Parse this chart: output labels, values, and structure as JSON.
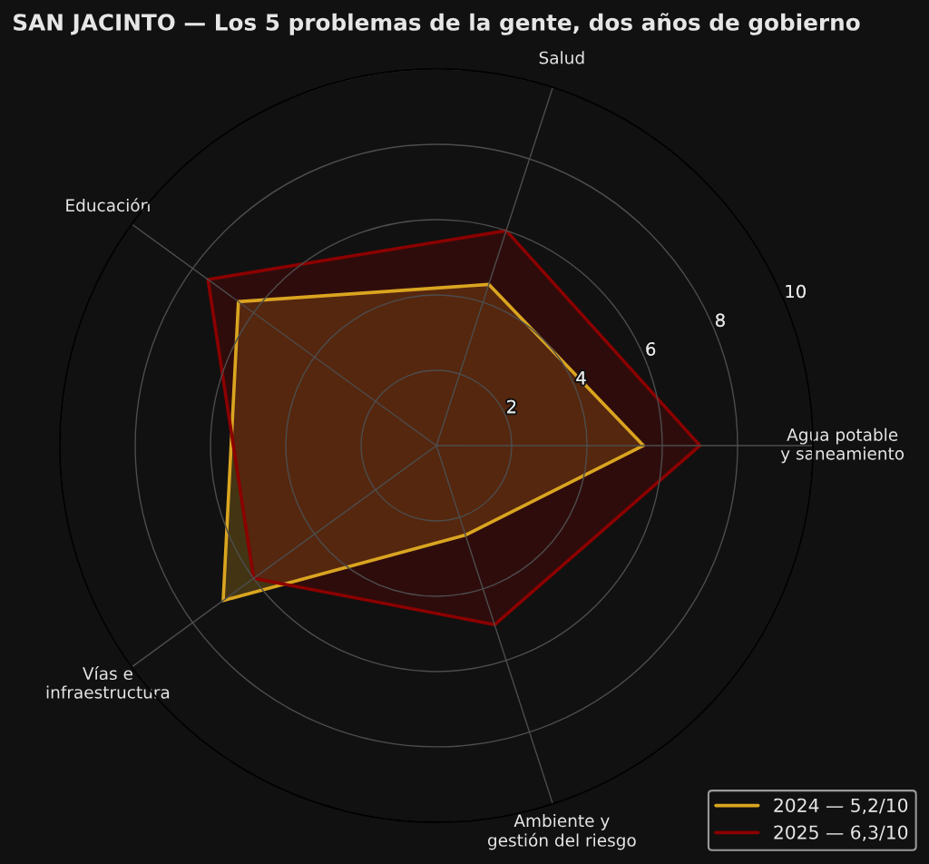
{
  "chart_data": {
    "type": "radar",
    "title": "SAN JACINTO — Los 5 problemas de la gente, dos años de gobierno",
    "categories": [
      "Salud",
      "Agua potable\ny saneamiento",
      "Ambiente y\ngestión del riesgo",
      "Vías e\ninfraestructura",
      "Educación"
    ],
    "series": [
      {
        "name": "2024 — 5,2/10",
        "color": "#daa520",
        "values": [
          4.5,
          5.5,
          2.5,
          7.0,
          6.5
        ]
      },
      {
        "name": "2025 — 6,3/10",
        "color": "#8b0000",
        "values": [
          6.0,
          7.0,
          5.0,
          6.0,
          7.5
        ]
      }
    ],
    "ylim": [
      0,
      10
    ],
    "yticks": [
      2,
      4,
      6,
      8,
      10
    ],
    "grid": true,
    "legend": "bottom right"
  }
}
